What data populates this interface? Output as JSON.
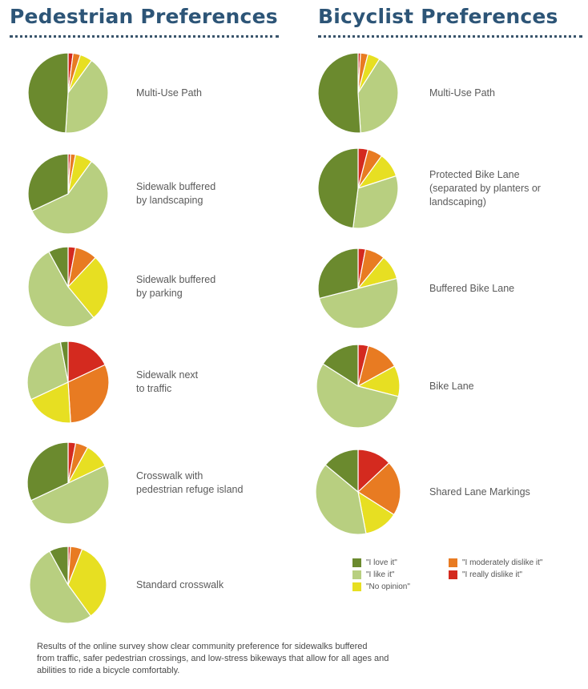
{
  "titles": {
    "pedestrian": "Pedestrian Preferences",
    "bicyclist": "Bicyclist Preferences"
  },
  "legend": {
    "love": "\"I love it\"",
    "like": "\"I like it\"",
    "no_opinion": "\"No opinion\"",
    "moderately_dislike": "\"I moderately dislike it\"",
    "really_dislike": "\"I really dislike it\""
  },
  "caption_lines": [
    "Results of the online survey show clear community preference for sidewalks buffered",
    "from traffic, safer pedestrian crossings, and low-stress bikeways that allow for all ages and",
    "abilities to ride a bicycle comfortably."
  ],
  "colors": {
    "love": "#6b8a2e",
    "like": "#b8cf80",
    "no_opinion": "#e7df22",
    "moderately_dislike": "#e87b22",
    "really_dislike": "#d42a1f"
  },
  "chart_data": [
    {
      "type": "pie",
      "title": "Pedestrian Preferences",
      "categories": [
        "\"I really dislike it\"",
        "\"I moderately dislike it\"",
        "\"No opinion\"",
        "\"I like it\"",
        "\"I love it\""
      ],
      "series": [
        {
          "name": "Multi-Use Path",
          "values": [
            2,
            3,
            5,
            41,
            49
          ]
        },
        {
          "name": "Sidewalk buffered\nby landscaping",
          "values": [
            1,
            2,
            7,
            58,
            32
          ]
        },
        {
          "name": "Sidewalk buffered\nby parking",
          "values": [
            3,
            9,
            27,
            53,
            8
          ]
        },
        {
          "name": "Sidewalk next\nto traffic",
          "values": [
            18,
            31,
            19,
            29,
            3
          ]
        },
        {
          "name": "Crosswalk with\npedestrian refuge island",
          "values": [
            3,
            5,
            10,
            50,
            32
          ]
        },
        {
          "name": "Standard crosswalk",
          "values": [
            1,
            5,
            34,
            52,
            8
          ]
        }
      ]
    },
    {
      "type": "pie",
      "title": "Bicyclist Preferences",
      "categories": [
        "\"I really dislike it\"",
        "\"I moderately dislike it\"",
        "\"No opinion\"",
        "\"I like it\"",
        "\"I love it\""
      ],
      "series": [
        {
          "name": "Multi-Use Path",
          "values": [
            1,
            3,
            5,
            40,
            51
          ]
        },
        {
          "name": "Protected Bike Lane\n(separated by planters or\nlandscaping)",
          "values": [
            4,
            6,
            10,
            32,
            48
          ]
        },
        {
          "name": "Buffered Bike Lane",
          "values": [
            3,
            8,
            10,
            50,
            29
          ]
        },
        {
          "name": "Bike Lane",
          "values": [
            4,
            13,
            12,
            55,
            16
          ]
        },
        {
          "name": "Shared Lane Markings",
          "values": [
            13,
            21,
            13,
            39,
            14
          ]
        }
      ]
    }
  ]
}
